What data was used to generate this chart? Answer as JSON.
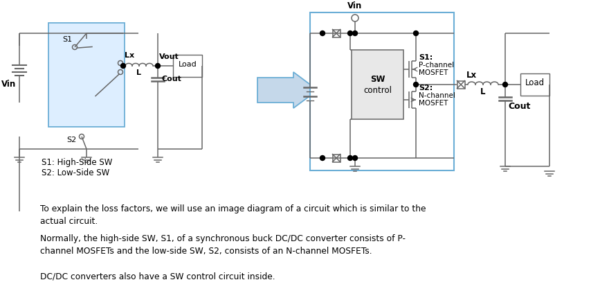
{
  "background_color": "#ffffff",
  "line_color": "#666666",
  "blue_edge": "#6baed6",
  "blue_fill": "#ddeeff",
  "arrow_face": "#c5d8ea",
  "gray_fill": "#e8e8e8",
  "text1": "To explain the loss factors, we will use an image diagram of a circuit which is similar to the\nactual circuit.",
  "text2": "Normally, the high-side SW, S1, of a synchronous buck DC/DC converter consists of P-\nchannel MOSFETs and the low-side SW, S2, consists of an N-channel MOSFETs.",
  "text3": "DC/DC converters also have a SW control circuit inside.",
  "figsize": [
    8.8,
    4.3
  ],
  "dpi": 100
}
